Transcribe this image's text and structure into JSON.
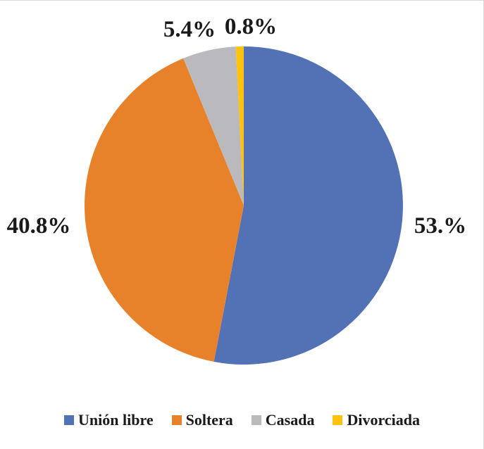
{
  "chart_data": {
    "type": "pie",
    "title": "",
    "legend_position": "bottom",
    "slices": [
      {
        "name": "Unión libre",
        "value": 53.0,
        "label": "53.%",
        "color": "#5372b5"
      },
      {
        "name": "Soltera",
        "value": 40.8,
        "label": "40.8%",
        "color": "#e8822a"
      },
      {
        "name": "Casada",
        "value": 5.4,
        "label": "5.4%",
        "color": "#b9b9be"
      },
      {
        "name": "Divorciada",
        "value": 0.8,
        "label": "0.8%",
        "color": "#ffc20e"
      }
    ]
  }
}
